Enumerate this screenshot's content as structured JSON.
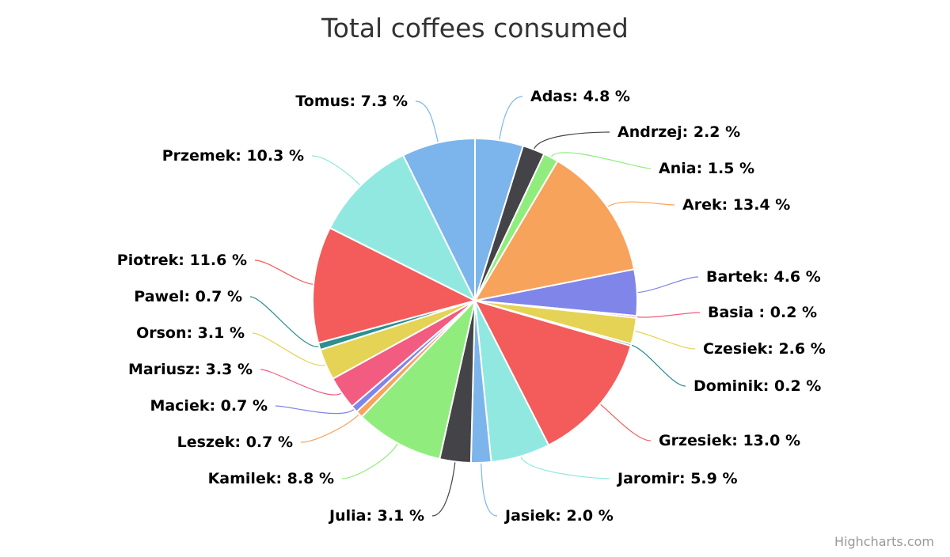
{
  "chart_data": {
    "type": "pie",
    "title": "Total coffees consumed",
    "value_suffix": " %",
    "start_angle_deg": 0,
    "direction": "clockwise",
    "slices": [
      {
        "name": "Adas",
        "label": "Adas: 4.8 %",
        "value": 4.8,
        "color": "#7cb5ec"
      },
      {
        "name": "Andrzej",
        "label": "Andrzej: 2.2 %",
        "value": 2.2,
        "color": "#434348"
      },
      {
        "name": "Ania",
        "label": "Ania: 1.5 %",
        "value": 1.5,
        "color": "#90ed7d"
      },
      {
        "name": "Arek",
        "label": "Arek: 13.4 %",
        "value": 13.4,
        "color": "#f7a35c"
      },
      {
        "name": "Bartek",
        "label": "Bartek: 4.6 %",
        "value": 4.6,
        "color": "#8085e9"
      },
      {
        "name": "Basia",
        "label": "Basia : 0.2 %",
        "value": 0.2,
        "color": "#f15c80"
      },
      {
        "name": "Czesiek",
        "label": "Czesiek: 2.6 %",
        "value": 2.6,
        "color": "#e4d354"
      },
      {
        "name": "Dominik",
        "label": "Dominik: 0.2 %",
        "value": 0.2,
        "color": "#2b908f"
      },
      {
        "name": "Grzesiek",
        "label": "Grzesiek: 13.0 %",
        "value": 13.0,
        "color": "#f45b5b"
      },
      {
        "name": "Jaromir",
        "label": "Jaromir: 5.9 %",
        "value": 5.9,
        "color": "#91e8e1"
      },
      {
        "name": "Jasiek",
        "label": "Jasiek: 2.0 %",
        "value": 2.0,
        "color": "#7cb5ec"
      },
      {
        "name": "Julia",
        "label": "Julia: 3.1 %",
        "value": 3.1,
        "color": "#434348"
      },
      {
        "name": "Kamilek",
        "label": "Kamilek: 8.8 %",
        "value": 8.8,
        "color": "#90ed7d"
      },
      {
        "name": "Leszek",
        "label": "Leszek: 0.7 %",
        "value": 0.7,
        "color": "#f7a35c"
      },
      {
        "name": "Maciek",
        "label": "Maciek: 0.7 %",
        "value": 0.7,
        "color": "#8085e9"
      },
      {
        "name": "Mariusz",
        "label": "Mariusz: 3.3 %",
        "value": 3.3,
        "color": "#f15c80"
      },
      {
        "name": "Orson",
        "label": "Orson: 3.1 %",
        "value": 3.1,
        "color": "#e4d354"
      },
      {
        "name": "Pawel",
        "label": "Pawel: 0.7 %",
        "value": 0.7,
        "color": "#2b908f"
      },
      {
        "name": "Piotrek",
        "label": "Piotrek: 11.6 %",
        "value": 11.6,
        "color": "#f45b5b"
      },
      {
        "name": "Przemek",
        "label": "Przemek: 10.3 %",
        "value": 10.3,
        "color": "#91e8e1"
      },
      {
        "name": "Tomus",
        "label": "Tomus: 7.3 %",
        "value": 7.3,
        "color": "#7cb5ec"
      }
    ]
  },
  "credits": "Highcharts.com"
}
